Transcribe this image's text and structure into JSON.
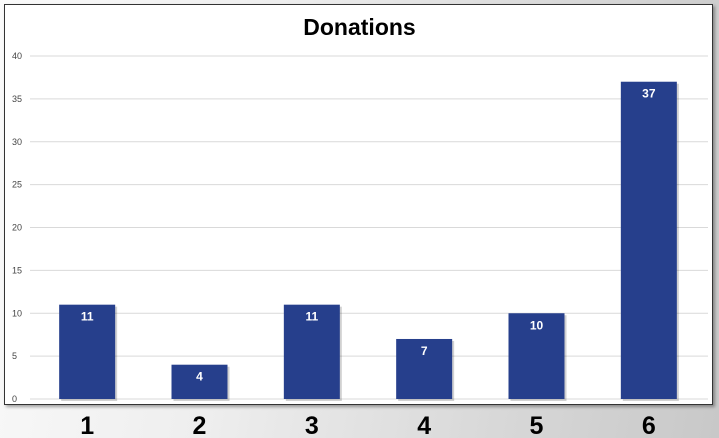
{
  "chart_data": {
    "type": "bar",
    "title": "Donations",
    "categories": [
      "1",
      "2",
      "3",
      "4",
      "5",
      "6"
    ],
    "values": [
      11,
      4,
      11,
      7,
      10,
      37
    ],
    "xlabel": "",
    "ylabel": "",
    "ylim": [
      0,
      40
    ],
    "yticks": [
      0,
      5,
      10,
      15,
      20,
      25,
      30,
      35,
      40
    ],
    "grid": true,
    "legend": "none",
    "bar_color": "#263f8c",
    "data_labels": [
      "11",
      "4",
      "11",
      "7",
      "10",
      "37"
    ]
  }
}
